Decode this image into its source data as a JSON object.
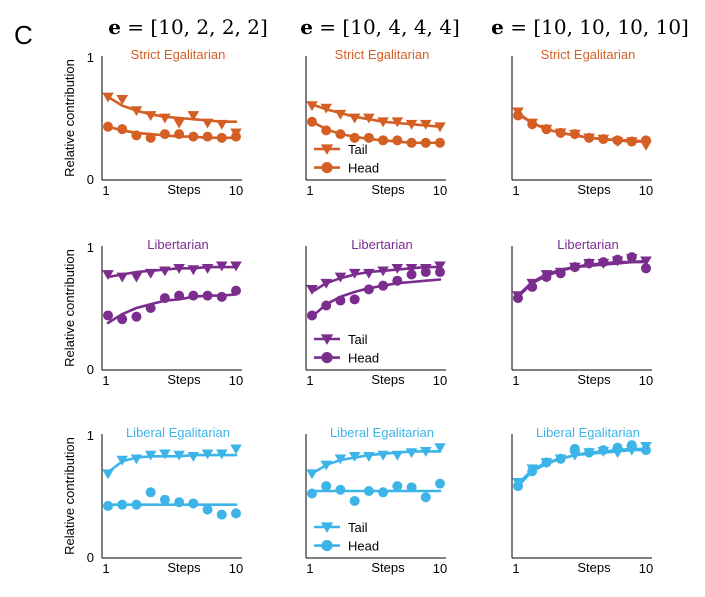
{
  "panel_label": "C",
  "column_titles": [
    {
      "symbol": "e",
      "rest": " = [10, 2, 2, 2]"
    },
    {
      "symbol": "e",
      "rest": " = [10, 4, 4, 4]"
    },
    {
      "symbol": "e",
      "rest": " = [10, 10, 10, 10]"
    }
  ],
  "colors": {
    "strict": "#D45F24",
    "libertarian": "#7B2D8E",
    "liberal": "#3DB4E8"
  },
  "chart_data": [
    {
      "type": "line",
      "row": 0,
      "col": 0,
      "title": "Strict Egalitarian",
      "color_key": "strict",
      "xlabel": "Steps",
      "ylabel": "Relative contribution",
      "x_tick_labels": [
        "1",
        "10"
      ],
      "y_tick_labels": [
        "0",
        "1"
      ],
      "ylim": [
        0,
        1
      ],
      "x": [
        1,
        2,
        3,
        4,
        5,
        6,
        7,
        8,
        9,
        10
      ],
      "legend": null,
      "series": [
        {
          "name": "Tail",
          "marker": "triangle",
          "points": [
            0.67,
            0.65,
            0.56,
            0.52,
            0.5,
            0.46,
            0.52,
            0.46,
            0.45,
            0.38
          ],
          "fit": [
            0.67,
            0.6,
            0.56,
            0.53,
            0.51,
            0.5,
            0.49,
            0.48,
            0.47,
            0.47
          ]
        },
        {
          "name": "Head",
          "marker": "circle",
          "points": [
            0.43,
            0.41,
            0.36,
            0.34,
            0.37,
            0.37,
            0.35,
            0.35,
            0.34,
            0.35
          ],
          "fit": [
            0.43,
            0.4,
            0.38,
            0.37,
            0.36,
            0.35,
            0.35,
            0.34,
            0.34,
            0.34
          ]
        }
      ]
    },
    {
      "type": "line",
      "row": 0,
      "col": 1,
      "title": "Strict Egalitarian",
      "color_key": "strict",
      "xlabel": "Steps",
      "ylabel": "",
      "x_tick_labels": [
        "1",
        "10"
      ],
      "y_tick_labels": [],
      "ylim": [
        0,
        1
      ],
      "x": [
        1,
        2,
        3,
        4,
        5,
        6,
        7,
        8,
        9,
        10
      ],
      "legend": {
        "items": [
          "Tail",
          "Head"
        ]
      },
      "series": [
        {
          "name": "Tail",
          "marker": "triangle",
          "points": [
            0.6,
            0.58,
            0.53,
            0.5,
            0.5,
            0.47,
            0.47,
            0.45,
            0.45,
            0.43
          ],
          "fit": [
            0.61,
            0.57,
            0.54,
            0.51,
            0.49,
            0.47,
            0.46,
            0.45,
            0.44,
            0.43
          ]
        },
        {
          "name": "Head",
          "marker": "circle",
          "points": [
            0.47,
            0.4,
            0.37,
            0.34,
            0.34,
            0.32,
            0.32,
            0.3,
            0.3,
            0.3
          ],
          "fit": [
            0.47,
            0.41,
            0.37,
            0.35,
            0.33,
            0.32,
            0.31,
            0.3,
            0.3,
            0.3
          ]
        }
      ]
    },
    {
      "type": "line",
      "row": 0,
      "col": 2,
      "title": "Strict Egalitarian",
      "color_key": "strict",
      "xlabel": "Steps",
      "ylabel": "",
      "x_tick_labels": [
        "1",
        "10"
      ],
      "y_tick_labels": [],
      "ylim": [
        0,
        1
      ],
      "x": [
        1,
        2,
        3,
        4,
        5,
        6,
        7,
        8,
        9,
        10
      ],
      "legend": null,
      "series": [
        {
          "name": "Tail",
          "marker": "triangle",
          "points": [
            0.55,
            0.46,
            0.41,
            0.38,
            0.37,
            0.34,
            0.33,
            0.31,
            0.31,
            0.28
          ],
          "fit": [
            0.54,
            0.46,
            0.41,
            0.38,
            0.36,
            0.34,
            0.33,
            0.32,
            0.31,
            0.31
          ]
        },
        {
          "name": "Head",
          "marker": "circle",
          "points": [
            0.52,
            0.45,
            0.41,
            0.38,
            0.37,
            0.34,
            0.33,
            0.32,
            0.31,
            0.32
          ],
          "fit": [
            0.53,
            0.46,
            0.41,
            0.38,
            0.36,
            0.34,
            0.33,
            0.32,
            0.32,
            0.31
          ]
        }
      ]
    },
    {
      "type": "line",
      "row": 1,
      "col": 0,
      "title": "Libertarian",
      "color_key": "libertarian",
      "xlabel": "Steps",
      "ylabel": "Relative contribution",
      "x_tick_labels": [
        "1",
        "10"
      ],
      "y_tick_labels": [
        "0",
        "1"
      ],
      "ylim": [
        0,
        1
      ],
      "x": [
        1,
        2,
        3,
        4,
        5,
        6,
        7,
        8,
        9,
        10
      ],
      "legend": null,
      "series": [
        {
          "name": "Tail",
          "marker": "triangle",
          "points": [
            0.77,
            0.75,
            0.75,
            0.78,
            0.8,
            0.82,
            0.81,
            0.82,
            0.84,
            0.84
          ],
          "fit": [
            0.75,
            0.77,
            0.79,
            0.8,
            0.81,
            0.82,
            0.82,
            0.83,
            0.83,
            0.83
          ]
        },
        {
          "name": "Head",
          "marker": "circle",
          "points": [
            0.44,
            0.41,
            0.43,
            0.5,
            0.58,
            0.6,
            0.6,
            0.6,
            0.59,
            0.64
          ],
          "fit": [
            0.38,
            0.45,
            0.5,
            0.53,
            0.56,
            0.57,
            0.59,
            0.6,
            0.6,
            0.61
          ]
        }
      ]
    },
    {
      "type": "line",
      "row": 1,
      "col": 1,
      "title": "Libertarian",
      "color_key": "libertarian",
      "xlabel": "Steps",
      "ylabel": "",
      "x_tick_labels": [
        "1",
        "10"
      ],
      "y_tick_labels": [],
      "ylim": [
        0,
        1
      ],
      "x": [
        1,
        2,
        3,
        4,
        5,
        6,
        7,
        8,
        9,
        10
      ],
      "legend": {
        "items": [
          "Tail",
          "Head"
        ]
      },
      "series": [
        {
          "name": "Tail",
          "marker": "triangle",
          "points": [
            0.65,
            0.7,
            0.75,
            0.78,
            0.78,
            0.8,
            0.82,
            0.82,
            0.82,
            0.84
          ],
          "fit": [
            0.63,
            0.7,
            0.74,
            0.77,
            0.79,
            0.8,
            0.81,
            0.82,
            0.83,
            0.83
          ]
        },
        {
          "name": "Head",
          "marker": "circle",
          "points": [
            0.44,
            0.52,
            0.56,
            0.57,
            0.65,
            0.68,
            0.72,
            0.77,
            0.79,
            0.79
          ],
          "fit": [
            0.43,
            0.53,
            0.59,
            0.63,
            0.66,
            0.68,
            0.7,
            0.71,
            0.72,
            0.73
          ]
        }
      ]
    },
    {
      "type": "line",
      "row": 1,
      "col": 2,
      "title": "Libertarian",
      "color_key": "libertarian",
      "xlabel": "Steps",
      "ylabel": "",
      "x_tick_labels": [
        "1",
        "10"
      ],
      "y_tick_labels": [],
      "ylim": [
        0,
        1
      ],
      "x": [
        1,
        2,
        3,
        4,
        5,
        6,
        7,
        8,
        9,
        10
      ],
      "legend": null,
      "series": [
        {
          "name": "Tail",
          "marker": "triangle",
          "points": [
            0.6,
            0.7,
            0.77,
            0.79,
            0.83,
            0.86,
            0.86,
            0.88,
            0.9,
            0.88
          ],
          "fit": [
            0.6,
            0.71,
            0.77,
            0.81,
            0.83,
            0.85,
            0.86,
            0.87,
            0.87,
            0.88
          ]
        },
        {
          "name": "Head",
          "marker": "circle",
          "points": [
            0.58,
            0.67,
            0.75,
            0.78,
            0.83,
            0.86,
            0.87,
            0.89,
            0.91,
            0.82
          ],
          "fit": [
            0.59,
            0.7,
            0.76,
            0.8,
            0.83,
            0.84,
            0.85,
            0.86,
            0.87,
            0.87
          ]
        }
      ]
    },
    {
      "type": "line",
      "row": 2,
      "col": 0,
      "title": "Liberal Egalitarian",
      "color_key": "liberal",
      "xlabel": "Steps",
      "ylabel": "Relative contribution",
      "x_tick_labels": [
        "1",
        "10"
      ],
      "y_tick_labels": [
        "0",
        "1"
      ],
      "ylim": [
        0,
        1
      ],
      "x": [
        1,
        2,
        3,
        4,
        5,
        6,
        7,
        8,
        9,
        10
      ],
      "legend": null,
      "series": [
        {
          "name": "Tail",
          "marker": "triangle",
          "points": [
            0.68,
            0.79,
            0.8,
            0.83,
            0.84,
            0.83,
            0.82,
            0.84,
            0.84,
            0.88
          ],
          "fit": [
            0.69,
            0.78,
            0.81,
            0.82,
            0.82,
            0.82,
            0.83,
            0.83,
            0.83,
            0.83
          ]
        },
        {
          "name": "Head",
          "marker": "circle",
          "points": [
            0.42,
            0.43,
            0.43,
            0.53,
            0.47,
            0.45,
            0.44,
            0.39,
            0.35,
            0.36
          ],
          "fit": [
            0.43,
            0.43,
            0.43,
            0.43,
            0.43,
            0.43,
            0.43,
            0.43,
            0.43,
            0.43
          ]
        }
      ]
    },
    {
      "type": "line",
      "row": 2,
      "col": 1,
      "title": "Liberal Egalitarian",
      "color_key": "liberal",
      "xlabel": "Steps",
      "ylabel": "",
      "x_tick_labels": [
        "1",
        "10"
      ],
      "y_tick_labels": [],
      "ylim": [
        0,
        1
      ],
      "x": [
        1,
        2,
        3,
        4,
        5,
        6,
        7,
        8,
        9,
        10
      ],
      "legend": {
        "items": [
          "Tail",
          "Head"
        ]
      },
      "series": [
        {
          "name": "Tail",
          "marker": "triangle",
          "points": [
            0.68,
            0.75,
            0.8,
            0.82,
            0.82,
            0.83,
            0.83,
            0.85,
            0.86,
            0.89
          ],
          "fit": [
            0.68,
            0.75,
            0.79,
            0.81,
            0.83,
            0.84,
            0.85,
            0.86,
            0.86,
            0.86
          ]
        },
        {
          "name": "Head",
          "marker": "circle",
          "points": [
            0.52,
            0.58,
            0.55,
            0.46,
            0.54,
            0.53,
            0.58,
            0.57,
            0.49,
            0.6
          ],
          "fit": [
            0.54,
            0.54,
            0.54,
            0.54,
            0.54,
            0.54,
            0.54,
            0.54,
            0.54,
            0.54
          ]
        }
      ]
    },
    {
      "type": "line",
      "row": 2,
      "col": 2,
      "title": "Liberal Egalitarian",
      "color_key": "liberal",
      "xlabel": "Steps",
      "ylabel": "",
      "x_tick_labels": [
        "1",
        "10"
      ],
      "y_tick_labels": [],
      "ylim": [
        0,
        1
      ],
      "x": [
        1,
        2,
        3,
        4,
        5,
        6,
        7,
        8,
        9,
        10
      ],
      "legend": null,
      "series": [
        {
          "name": "Tail",
          "marker": "triangle",
          "points": [
            0.61,
            0.72,
            0.77,
            0.8,
            0.83,
            0.85,
            0.86,
            0.85,
            0.87,
            0.9
          ],
          "fit": [
            0.6,
            0.71,
            0.77,
            0.8,
            0.83,
            0.84,
            0.85,
            0.86,
            0.87,
            0.87
          ]
        },
        {
          "name": "Head",
          "marker": "circle",
          "points": [
            0.58,
            0.7,
            0.77,
            0.8,
            0.88,
            0.85,
            0.87,
            0.89,
            0.91,
            0.87
          ],
          "fit": [
            0.58,
            0.7,
            0.76,
            0.8,
            0.83,
            0.85,
            0.86,
            0.87,
            0.88,
            0.88
          ]
        }
      ]
    }
  ]
}
